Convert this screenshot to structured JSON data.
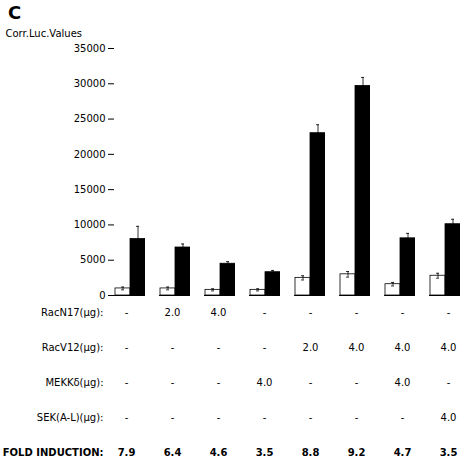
{
  "chart_data": {
    "type": "bar",
    "title": "C",
    "ylabel": "Corr.Luc.Values",
    "categories": [
      null,
      null,
      null,
      null,
      null,
      null,
      null,
      null
    ],
    "series": [
      {
        "color": "white",
        "values": [
          1000,
          1000,
          800,
          800,
          2500,
          3000,
          1600,
          2800
        ],
        "errors": [
          200,
          200,
          150,
          150,
          300,
          400,
          250,
          350
        ]
      },
      {
        "color": "black",
        "values": [
          8000,
          6800,
          4500,
          3300,
          23000,
          29700,
          8100,
          10100
        ],
        "errors": [
          1800,
          500,
          300,
          250,
          1200,
          1200,
          700,
          700
        ]
      }
    ],
    "ylim": [
      0,
      35000
    ],
    "yticks": [
      0,
      5000,
      10000,
      15000,
      20000,
      25000,
      30000,
      35000
    ],
    "tick_labels": "y",
    "grid": false,
    "table": {
      "rows": [
        [
          "RacN17(μg):",
          "-",
          "2.0",
          "4.0",
          "-",
          "-",
          "-",
          "-",
          "-"
        ],
        [
          "RacV12(μg):",
          "-",
          "-",
          "-",
          "-",
          "2.0",
          "4.0",
          "4.0",
          "4.0"
        ],
        [
          "MEKKδ(μg):",
          "-",
          "-",
          "-",
          "4.0",
          "-",
          "-",
          "4.0",
          "-"
        ],
        [
          "SEK(A-L)(μg):",
          "-",
          "-",
          "-",
          "-",
          "-",
          "-",
          "-",
          "4.0"
        ]
      ],
      "fold_label": "FOLD INDUCTION:",
      "fold_values": [
        "7.9",
        "6.4",
        "4.6",
        "3.5",
        "8.8",
        "9.2",
        "4.7",
        "3.5"
      ]
    }
  }
}
